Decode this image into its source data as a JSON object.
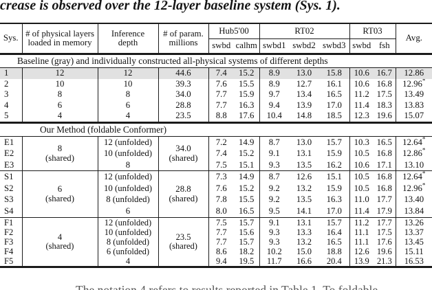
{
  "page": {
    "top_text": "crease is observed over the 12-layer baseline system (Sys. 1).",
    "bottom_text_partial": "The notation 4 refers to results reported in Table 1. To foldable"
  },
  "table": {
    "header": {
      "sys": "Sys.",
      "layers": [
        "# of physical layers",
        "loaded in memory"
      ],
      "inference": [
        "Inference",
        "depth"
      ],
      "param": [
        "# of param.",
        "millions"
      ],
      "groups": [
        {
          "label": "Hub5'00"
        },
        {
          "label": "RT02"
        },
        {
          "label": "RT03"
        }
      ],
      "sub_labels": [
        "swbd",
        "calhm",
        "swbd1",
        "swbd2",
        "swbd3",
        "swbd",
        "fsh"
      ],
      "avg": "Avg."
    },
    "star_symbol": "*",
    "baseline": {
      "title": "Baseline (gray) and individually constructed all-physical systems of different depths",
      "rows": [
        {
          "sys": "1",
          "layers": "12",
          "depth": "12",
          "param": "44.6",
          "wer": [
            "7.4",
            "15.2",
            "8.9",
            "13.0",
            "15.8",
            "10.6",
            "16.7"
          ],
          "avg": "12.86",
          "star": false,
          "highlight": true
        },
        {
          "sys": "2",
          "layers": "10",
          "depth": "10",
          "param": "39.3",
          "wer": [
            "7.6",
            "15.5",
            "8.9",
            "12.7",
            "16.1",
            "10.6",
            "16.8"
          ],
          "avg": "12.96",
          "star": true,
          "highlight": false
        },
        {
          "sys": "3",
          "layers": "8",
          "depth": "8",
          "param": "34.0",
          "wer": [
            "7.7",
            "15.9",
            "9.7",
            "13.4",
            "16.5",
            "11.2",
            "17.5"
          ],
          "avg": "13.49",
          "star": false,
          "highlight": false
        },
        {
          "sys": "4",
          "layers": "6",
          "depth": "6",
          "param": "28.8",
          "wer": [
            "7.7",
            "16.3",
            "9.4",
            "13.9",
            "17.0",
            "11.4",
            "18.3"
          ],
          "avg": "13.83",
          "star": false,
          "highlight": false
        },
        {
          "sys": "5",
          "layers": "4",
          "depth": "4",
          "param": "23.5",
          "wer": [
            "8.8",
            "17.6",
            "10.4",
            "14.8",
            "18.5",
            "12.3",
            "19.6"
          ],
          "avg": "15.07",
          "star": false,
          "highlight": false
        }
      ]
    },
    "method": {
      "title": "Our Method (foldable Conformer)",
      "groups": [
        {
          "shared_layers": [
            "8",
            "(shared)"
          ],
          "shared_param": [
            "34.0",
            "(shared)"
          ],
          "rows": [
            {
              "sys": "E1",
              "depth": "12 (unfolded)",
              "wer": [
                "7.2",
                "14.9",
                "8.7",
                "13.0",
                "15.7",
                "10.3",
                "16.5"
              ],
              "avg": "12.64",
              "star": true
            },
            {
              "sys": "E2",
              "depth": "10 (unfolded)",
              "wer": [
                "7.4",
                "15.2",
                "9.1",
                "13.1",
                "15.9",
                "10.5",
                "16.8"
              ],
              "avg": "12.86",
              "star": true
            },
            {
              "sys": "E3",
              "depth": "8",
              "wer": [
                "7.5",
                "15.1",
                "9.3",
                "13.5",
                "16.2",
                "10.6",
                "17.1"
              ],
              "avg": "13.10",
              "star": false
            }
          ]
        },
        {
          "shared_layers": [
            "6",
            "(shared)"
          ],
          "shared_param": [
            "28.8",
            "(shared)"
          ],
          "rows": [
            {
              "sys": "S1",
              "depth": "12 (unfolded)",
              "wer": [
                "7.3",
                "14.9",
                "8.7",
                "12.6",
                "15.1",
                "10.5",
                "16.8"
              ],
              "avg": "12.64",
              "star": true
            },
            {
              "sys": "S2",
              "depth": "10 (unfolded)",
              "wer": [
                "7.6",
                "15.2",
                "9.2",
                "13.2",
                "15.9",
                "10.5",
                "16.8"
              ],
              "avg": "12.96",
              "star": true
            },
            {
              "sys": "S3",
              "depth": "8 (unfolded)",
              "wer": [
                "7.8",
                "15.5",
                "9.2",
                "13.5",
                "16.3",
                "11.0",
                "17.7"
              ],
              "avg": "13.40",
              "star": false
            },
            {
              "sys": "S4",
              "depth": "6",
              "wer": [
                "8.0",
                "16.5",
                "9.5",
                "14.1",
                "17.0",
                "11.4",
                "17.9"
              ],
              "avg": "13.84",
              "star": false
            }
          ]
        },
        {
          "shared_layers": [
            "4",
            "(shared)"
          ],
          "shared_param": [
            "23.5",
            "(shared)"
          ],
          "rows": [
            {
              "sys": "F1",
              "depth": "12 (unfolded)",
              "wer": [
                "7.5",
                "15.7",
                "9.1",
                "13.1",
                "15.7",
                "11.2",
                "17.7"
              ],
              "avg": "13.26",
              "star": false
            },
            {
              "sys": "F2",
              "depth": "10 (unfolded)",
              "wer": [
                "7.7",
                "15.6",
                "9.3",
                "13.3",
                "16.4",
                "11.1",
                "17.5"
              ],
              "avg": "13.37",
              "star": false
            },
            {
              "sys": "F3",
              "depth": "8 (unfolded)",
              "wer": [
                "7.7",
                "15.7",
                "9.3",
                "13.2",
                "16.5",
                "11.1",
                "17.6"
              ],
              "avg": "13.45",
              "star": false
            },
            {
              "sys": "F4",
              "depth": "6 (unfolded)",
              "wer": [
                "8.6",
                "18.2",
                "10.2",
                "15.0",
                "18.8",
                "12.6",
                "19.6"
              ],
              "avg": "15.11",
              "star": false
            },
            {
              "sys": "F5",
              "depth": "4",
              "wer": [
                "9.4",
                "19.5",
                "11.7",
                "16.6",
                "20.4",
                "13.9",
                "21.3"
              ],
              "avg": "16.53",
              "star": false
            }
          ]
        }
      ]
    }
  },
  "colors": {
    "highlight_row": "#e1e1e1",
    "rule": "#1a1a1a"
  }
}
